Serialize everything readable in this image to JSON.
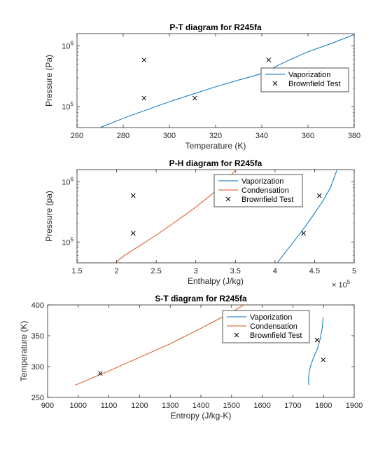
{
  "chart_data": [
    {
      "type": "line",
      "title": "P-T diagram for R245fa",
      "xlabel": "Temperature (K)",
      "ylabel": "Pressure (Pa)",
      "xlim": [
        260,
        380
      ],
      "ylim": [
        45000,
        1600000
      ],
      "yscale": "log",
      "xticks": [
        260,
        280,
        300,
        320,
        340,
        360,
        380
      ],
      "xtick_labels": [
        "260",
        "280",
        "300",
        "320",
        "340",
        "360",
        "380"
      ],
      "yticks": [
        100000,
        1000000
      ],
      "ytick_labels": [
        {
          "base": "10",
          "exp": "5"
        },
        {
          "base": "10",
          "exp": "6"
        }
      ],
      "x_multiplier": null,
      "legend_position": "right",
      "series": [
        {
          "name": "Vaporization",
          "style": "line",
          "color": "#0072BD",
          "x": [
            270,
            280,
            290,
            300,
            310,
            320,
            330,
            340,
            350,
            360,
            370,
            380
          ],
          "y": [
            45000,
            64000,
            88000,
            120000,
            160000,
            212000,
            275000,
            350000,
            545000,
            805000,
            1100000,
            1550000
          ]
        },
        {
          "name": "Brownfield Test",
          "style": "marker",
          "color": "#000000",
          "x": [
            289,
            289,
            311,
            343
          ],
          "y": [
            590000,
            138000,
            138000,
            590000
          ]
        }
      ]
    },
    {
      "type": "line",
      "title": "P-H diagram for R245fa",
      "xlabel": "Enthalpy (J/kg)",
      "ylabel": "Pressure (pa)",
      "xlim": [
        150000,
        500000
      ],
      "ylim": [
        45000,
        1600000
      ],
      "yscale": "log",
      "xticks": [
        150000,
        200000,
        250000,
        300000,
        350000,
        400000,
        450000,
        500000
      ],
      "xtick_labels": [
        "1.5",
        "2",
        "2.5",
        "3",
        "3.5",
        "4",
        "4.5",
        "5"
      ],
      "yticks": [
        100000,
        1000000
      ],
      "ytick_labels": [
        {
          "base": "10",
          "exp": "5"
        },
        {
          "base": "10",
          "exp": "6"
        }
      ],
      "x_multiplier": {
        "base": "× 10",
        "exp": "5"
      },
      "legend_position": "top-right",
      "series": [
        {
          "name": "Vaporization",
          "style": "line",
          "color": "#0072BD",
          "x": [
            403000,
            410000,
            420000,
            430000,
            440000,
            450000,
            460000,
            470000,
            478000
          ],
          "y": [
            45000,
            60000,
            88000,
            130000,
            195000,
            300000,
            470000,
            800000,
            1550000
          ]
        },
        {
          "name": "Condensation",
          "style": "line",
          "color": "#D95319",
          "x": [
            198000,
            210000,
            225000,
            250000,
            275000,
            300000,
            325000,
            350000
          ],
          "y": [
            45000,
            60000,
            80000,
            130000,
            220000,
            380000,
            700000,
            1550000
          ]
        },
        {
          "name": "Brownfield Test",
          "style": "marker",
          "color": "#000000",
          "x": [
            221000,
            221000,
            436000,
            456000
          ],
          "y": [
            590000,
            140000,
            140000,
            590000
          ]
        }
      ]
    },
    {
      "type": "line",
      "title": "S-T diagram for R245fa",
      "xlabel": "Entropy (J/kg-K)",
      "ylabel": "Temperature (K)",
      "xlim": [
        900,
        1900
      ],
      "ylim": [
        250,
        400
      ],
      "yscale": "linear",
      "xticks": [
        900,
        1000,
        1100,
        1200,
        1300,
        1400,
        1500,
        1600,
        1700,
        1800,
        1900
      ],
      "xtick_labels": [
        "900",
        "1000",
        "1100",
        "1200",
        "1300",
        "1400",
        "1500",
        "1600",
        "1700",
        "1800",
        "1900"
      ],
      "yticks": [
        250,
        300,
        350,
        400
      ],
      "ytick_labels": [
        "250",
        "300",
        "350",
        "400"
      ],
      "x_multiplier": null,
      "legend_position": "top-right",
      "series": [
        {
          "name": "Vaporization",
          "style": "line",
          "color": "#0072BD",
          "x": [
            1752,
            1751,
            1753,
            1757,
            1764,
            1772,
            1781,
            1789,
            1795,
            1799
          ],
          "y": [
            270,
            280,
            290,
            300,
            310,
            320,
            330,
            345,
            360,
            380
          ]
        },
        {
          "name": "Condensation",
          "style": "line",
          "color": "#D95319",
          "x": [
            990,
            1100,
            1200,
            1300,
            1400,
            1450,
            1500,
            1540
          ],
          "y": [
            270,
            293,
            315,
            337,
            362,
            375,
            388,
            400
          ]
        },
        {
          "name": "Brownfield Test",
          "style": "marker",
          "color": "#000000",
          "x": [
            1072,
            1779,
            1799
          ],
          "y": [
            289,
            343,
            311
          ]
        }
      ]
    }
  ]
}
